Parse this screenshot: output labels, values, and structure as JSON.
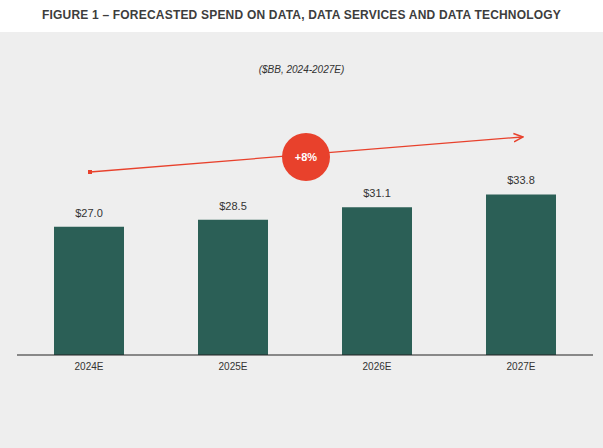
{
  "chart_data": {
    "type": "bar",
    "title": "FIGURE 1 – FORECASTED SPEND ON DATA, DATA SERVICES AND DATA TECHNOLOGY",
    "subtitle": "($BB, 2024-2027E)",
    "categories": [
      "2024E",
      "2025E",
      "2026E",
      "2027E"
    ],
    "values": [
      27.0,
      28.5,
      31.1,
      33.8
    ],
    "value_labels": [
      "$27.0",
      "$28.5",
      "$31.1",
      "$33.8"
    ],
    "color": "#2b5f56",
    "ylim": [
      0,
      40
    ],
    "data_labels": true,
    "tick_labels": "x",
    "grid": false,
    "annotations": [
      "+8%"
    ]
  }
}
